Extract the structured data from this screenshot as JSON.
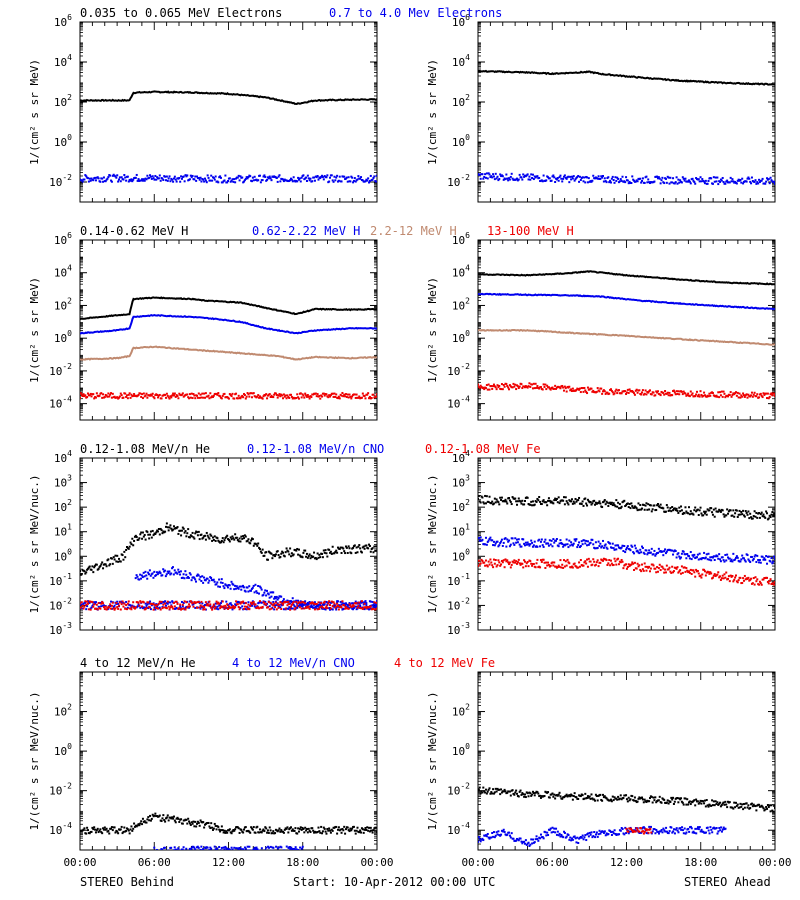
{
  "colors": {
    "black": "#000000",
    "blue": "#0000ee",
    "tan": "#c08a70",
    "red": "#ee0000"
  },
  "legends": [
    [
      {
        "text": "0.035 to 0.065 MeV Electrons",
        "color": "#000000"
      },
      {
        "text": "0.7 to 4.0 Mev Electrons",
        "color": "#0000ee"
      }
    ],
    [
      {
        "text": "0.14-0.62 MeV H",
        "color": "#000000"
      },
      {
        "text": "0.62-2.22 MeV H",
        "color": "#0000ee"
      },
      {
        "text": "2.2-12 MeV H",
        "color": "#c08a70"
      },
      {
        "text": "13-100 MeV H",
        "color": "#ee0000"
      }
    ],
    [
      {
        "text": "0.12-1.08 MeV/n He",
        "color": "#000000"
      },
      {
        "text": "0.12-1.08 MeV/n CNO",
        "color": "#0000ee"
      },
      {
        "text": "0.12-1.08 MeV Fe",
        "color": "#ee0000"
      }
    ],
    [
      {
        "text": "4 to 12 MeV/n He",
        "color": "#000000"
      },
      {
        "text": "4 to 12 MeV/n CNO",
        "color": "#0000ee"
      },
      {
        "text": "4 to 12 MeV Fe",
        "color": "#ee0000"
      }
    ]
  ],
  "ylabels": {
    "intensity": "1/(cm² s sr MeV)",
    "nucleon": "1/(cm² s sr MeV/nuc.)"
  },
  "xticks": [
    "00:00",
    "06:00",
    "12:00",
    "18:00",
    "00:00"
  ],
  "footer": {
    "left": "STEREO Behind",
    "center": "Start: 10-Apr-2012 00:00 UTC",
    "right": "STEREO Ahead"
  },
  "chart_data": [
    {
      "id": "behind-electrons",
      "type": "scatter",
      "log_y": true,
      "y_exp_range": [
        -3,
        6
      ],
      "tick_exps": [
        -2,
        0,
        2,
        4,
        6
      ],
      "x_range_hours": [
        0,
        24
      ],
      "series": [
        {
          "color": "#000000",
          "style": "line",
          "points": [
            [
              0,
              120
            ],
            [
              4,
              120
            ],
            [
              4.3,
              290
            ],
            [
              6,
              320
            ],
            [
              9,
              300
            ],
            [
              12,
              260
            ],
            [
              15,
              170
            ],
            [
              16.5,
              110
            ],
            [
              17.5,
              80
            ],
            [
              19,
              120
            ],
            [
              22,
              130
            ],
            [
              24,
              135
            ]
          ]
        },
        {
          "color": "#0000ee",
          "style": "dots",
          "points": [
            [
              0,
              0.015
            ],
            [
              6,
              0.016
            ],
            [
              12,
              0.014
            ],
            [
              18,
              0.015
            ],
            [
              24,
              0.014
            ]
          ]
        }
      ]
    },
    {
      "id": "ahead-electrons",
      "type": "scatter",
      "log_y": true,
      "y_exp_range": [
        -3,
        6
      ],
      "tick_exps": [
        -2,
        0,
        2,
        4,
        6
      ],
      "x_range_hours": [
        0,
        24
      ],
      "series": [
        {
          "color": "#000000",
          "style": "line",
          "points": [
            [
              0,
              3500
            ],
            [
              4,
              3000
            ],
            [
              6,
              2600
            ],
            [
              9,
              3200
            ],
            [
              10,
              2500
            ],
            [
              13,
              1700
            ],
            [
              16,
              1200
            ],
            [
              20,
              900
            ],
            [
              24,
              750
            ]
          ]
        },
        {
          "color": "#0000ee",
          "style": "dots",
          "points": [
            [
              0,
              0.02
            ],
            [
              6,
              0.015
            ],
            [
              12,
              0.013
            ],
            [
              18,
              0.012
            ],
            [
              24,
              0.011
            ]
          ]
        }
      ]
    },
    {
      "id": "behind-protons",
      "type": "scatter",
      "log_y": true,
      "y_exp_range": [
        -5,
        6
      ],
      "tick_exps": [
        -4,
        -2,
        0,
        2,
        4,
        6
      ],
      "x_range_hours": [
        0,
        24
      ],
      "series": [
        {
          "color": "#000000",
          "style": "line",
          "points": [
            [
              0,
              15
            ],
            [
              3,
              25
            ],
            [
              4,
              30
            ],
            [
              4.3,
              250
            ],
            [
              6,
              300
            ],
            [
              9,
              250
            ],
            [
              10,
              200
            ],
            [
              13,
              150
            ],
            [
              16,
              50
            ],
            [
              17.5,
              30
            ],
            [
              19,
              60
            ],
            [
              22,
              55
            ],
            [
              24,
              60
            ]
          ]
        },
        {
          "color": "#0000ee",
          "style": "line",
          "points": [
            [
              0,
              2
            ],
            [
              3,
              3
            ],
            [
              4,
              4
            ],
            [
              4.3,
              20
            ],
            [
              6,
              25
            ],
            [
              9,
              20
            ],
            [
              11,
              15
            ],
            [
              13,
              10
            ],
            [
              15,
              4
            ],
            [
              17.5,
              2
            ],
            [
              19,
              3
            ],
            [
              22,
              4
            ],
            [
              24,
              4
            ]
          ]
        },
        {
          "color": "#c08a70",
          "style": "line",
          "points": [
            [
              0,
              0.05
            ],
            [
              3,
              0.06
            ],
            [
              4,
              0.08
            ],
            [
              4.3,
              0.25
            ],
            [
              6,
              0.3
            ],
            [
              9,
              0.2
            ],
            [
              13,
              0.12
            ],
            [
              16,
              0.08
            ],
            [
              17.5,
              0.05
            ],
            [
              19,
              0.07
            ],
            [
              22,
              0.06
            ],
            [
              24,
              0.07
            ]
          ]
        },
        {
          "color": "#ee0000",
          "style": "dots",
          "points": [
            [
              0,
              0.0003
            ],
            [
              6,
              0.0003
            ],
            [
              12,
              0.0003
            ],
            [
              18,
              0.0003
            ],
            [
              24,
              0.0003
            ]
          ]
        }
      ]
    },
    {
      "id": "ahead-protons",
      "type": "scatter",
      "log_y": true,
      "y_exp_range": [
        -5,
        6
      ],
      "tick_exps": [
        -4,
        -2,
        0,
        2,
        4,
        6
      ],
      "x_range_hours": [
        0,
        24
      ],
      "series": [
        {
          "color": "#000000",
          "style": "line",
          "points": [
            [
              0,
              8000
            ],
            [
              4,
              7000
            ],
            [
              7,
              9000
            ],
            [
              9,
              12000
            ],
            [
              12,
              7000
            ],
            [
              16,
              4000
            ],
            [
              20,
              2500
            ],
            [
              24,
              2000
            ]
          ]
        },
        {
          "color": "#0000ee",
          "style": "line",
          "points": [
            [
              0,
              500
            ],
            [
              4,
              450
            ],
            [
              8,
              400
            ],
            [
              10,
              350
            ],
            [
              13,
              200
            ],
            [
              17,
              120
            ],
            [
              21,
              80
            ],
            [
              24,
              60
            ]
          ]
        },
        {
          "color": "#c08a70",
          "style": "line",
          "points": [
            [
              0,
              3
            ],
            [
              4,
              3
            ],
            [
              8,
              2
            ],
            [
              12,
              1.4
            ],
            [
              16,
              0.9
            ],
            [
              20,
              0.6
            ],
            [
              24,
              0.4
            ]
          ]
        },
        {
          "color": "#ee0000",
          "style": "dots",
          "points": [
            [
              0,
              0.001
            ],
            [
              4,
              0.0012
            ],
            [
              8,
              0.0007
            ],
            [
              12,
              0.0005
            ],
            [
              18,
              0.0004
            ],
            [
              24,
              0.0003
            ]
          ]
        }
      ]
    },
    {
      "id": "behind-heavy",
      "type": "scatter",
      "log_y": true,
      "y_exp_range": [
        -3,
        4
      ],
      "tick_exps": [
        -3,
        -2,
        -1,
        0,
        1,
        2,
        3,
        4
      ],
      "x_range_hours": [
        0,
        24
      ],
      "series": [
        {
          "color": "#000000",
          "style": "dots",
          "points": [
            [
              0,
              0.2
            ],
            [
              2,
              0.5
            ],
            [
              3.5,
              1
            ],
            [
              4.5,
              6
            ],
            [
              6,
              8
            ],
            [
              7,
              15
            ],
            [
              9,
              8
            ],
            [
              11,
              5
            ],
            [
              13,
              6
            ],
            [
              14,
              4
            ],
            [
              15,
              1
            ],
            [
              17,
              1.5
            ],
            [
              19,
              1
            ],
            [
              21,
              2
            ],
            [
              24,
              2
            ]
          ]
        },
        {
          "color": "#0000ee",
          "style": "dots",
          "points": [
            [
              4.5,
              0.15
            ],
            [
              6,
              0.2
            ],
            [
              7.5,
              0.25
            ],
            [
              9,
              0.15
            ],
            [
              10.5,
              0.1
            ],
            [
              12,
              0.07
            ],
            [
              13,
              0.05
            ],
            [
              14,
              0.05
            ],
            [
              18,
              0.01
            ],
            [
              24,
              0.01
            ]
          ]
        },
        {
          "color": "#0000ee",
          "style": "dots",
          "points": [
            [
              0,
              0.01
            ],
            [
              3,
              0.01
            ],
            [
              6,
              0.01
            ],
            [
              9,
              0.01
            ],
            [
              12,
              0.01
            ],
            [
              15,
              0.01
            ],
            [
              18,
              0.01
            ],
            [
              21,
              0.01
            ],
            [
              24,
              0.01
            ]
          ]
        },
        {
          "color": "#ee0000",
          "style": "dots",
          "points": [
            [
              0,
              0.01
            ],
            [
              4,
              0.01
            ],
            [
              8,
              0.01
            ],
            [
              12,
              0.01
            ],
            [
              16,
              0.01
            ],
            [
              20,
              0.01
            ],
            [
              24,
              0.01
            ]
          ]
        }
      ]
    },
    {
      "id": "ahead-heavy",
      "type": "scatter",
      "log_y": true,
      "y_exp_range": [
        -3,
        4
      ],
      "tick_exps": [
        -3,
        -2,
        -1,
        0,
        1,
        2,
        3,
        4
      ],
      "x_range_hours": [
        0,
        24
      ],
      "series": [
        {
          "color": "#000000",
          "style": "dots",
          "points": [
            [
              0,
              200
            ],
            [
              4,
              170
            ],
            [
              7,
              180
            ],
            [
              9,
              160
            ],
            [
              12,
              120
            ],
            [
              16,
              80
            ],
            [
              20,
              55
            ],
            [
              24,
              45
            ]
          ]
        },
        {
          "color": "#0000ee",
          "style": "dots",
          "points": [
            [
              0,
              4
            ],
            [
              4,
              3.5
            ],
            [
              8,
              3.5
            ],
            [
              10,
              3
            ],
            [
              12,
              2
            ],
            [
              16,
              1.2
            ],
            [
              20,
              0.9
            ],
            [
              24,
              0.7
            ]
          ]
        },
        {
          "color": "#ee0000",
          "style": "dots",
          "points": [
            [
              0,
              0.5
            ],
            [
              4,
              0.5
            ],
            [
              8,
              0.5
            ],
            [
              11,
              0.6
            ],
            [
              13,
              0.35
            ],
            [
              16,
              0.3
            ],
            [
              18,
              0.2
            ],
            [
              20,
              0.15
            ],
            [
              22,
              0.1
            ],
            [
              24,
              0.1
            ]
          ]
        }
      ]
    },
    {
      "id": "behind-high-energy-heavy",
      "type": "scatter",
      "log_y": true,
      "y_exp_range": [
        -5,
        4
      ],
      "tick_exps": [
        -4,
        -2,
        0,
        2
      ],
      "x_range_hours": [
        0,
        24
      ],
      "series": [
        {
          "color": "#000000",
          "style": "dots",
          "points": [
            [
              0,
              0.0001
            ],
            [
              4,
              0.0001
            ],
            [
              5,
              0.0003
            ],
            [
              6,
              0.0005
            ],
            [
              8,
              0.0003
            ],
            [
              10,
              0.0002
            ],
            [
              12,
              0.0001
            ],
            [
              16,
              0.0001
            ],
            [
              20,
              0.0001
            ],
            [
              24,
              0.0001
            ]
          ]
        },
        {
          "color": "#0000ee",
          "style": "dots",
          "points": [
            [
              6,
              1e-05
            ],
            [
              12,
              1e-05
            ],
            [
              18,
              1e-05
            ]
          ]
        }
      ]
    },
    {
      "id": "ahead-high-energy-heavy",
      "type": "scatter",
      "log_y": true,
      "y_exp_range": [
        -5,
        4
      ],
      "tick_exps": [
        -4,
        -2,
        0,
        2
      ],
      "x_range_hours": [
        0,
        24
      ],
      "series": [
        {
          "color": "#000000",
          "style": "dots",
          "points": [
            [
              0,
              0.01
            ],
            [
              4,
              0.007
            ],
            [
              8,
              0.005
            ],
            [
              12,
              0.004
            ],
            [
              16,
              0.003
            ],
            [
              20,
              0.002
            ],
            [
              24,
              0.0012
            ]
          ]
        },
        {
          "color": "#0000ee",
          "style": "dots",
          "points": [
            [
              0,
              3e-05
            ],
            [
              2,
              8e-05
            ],
            [
              4,
              2e-05
            ],
            [
              6,
              0.0001
            ],
            [
              8,
              3e-05
            ],
            [
              10,
              8e-05
            ],
            [
              14,
              0.0001
            ],
            [
              17,
              0.0001
            ],
            [
              20,
              0.0001
            ]
          ]
        },
        {
          "color": "#ee0000",
          "style": "dots",
          "points": [
            [
              12,
              0.0001
            ],
            [
              14,
              0.0001
            ]
          ]
        }
      ]
    }
  ]
}
